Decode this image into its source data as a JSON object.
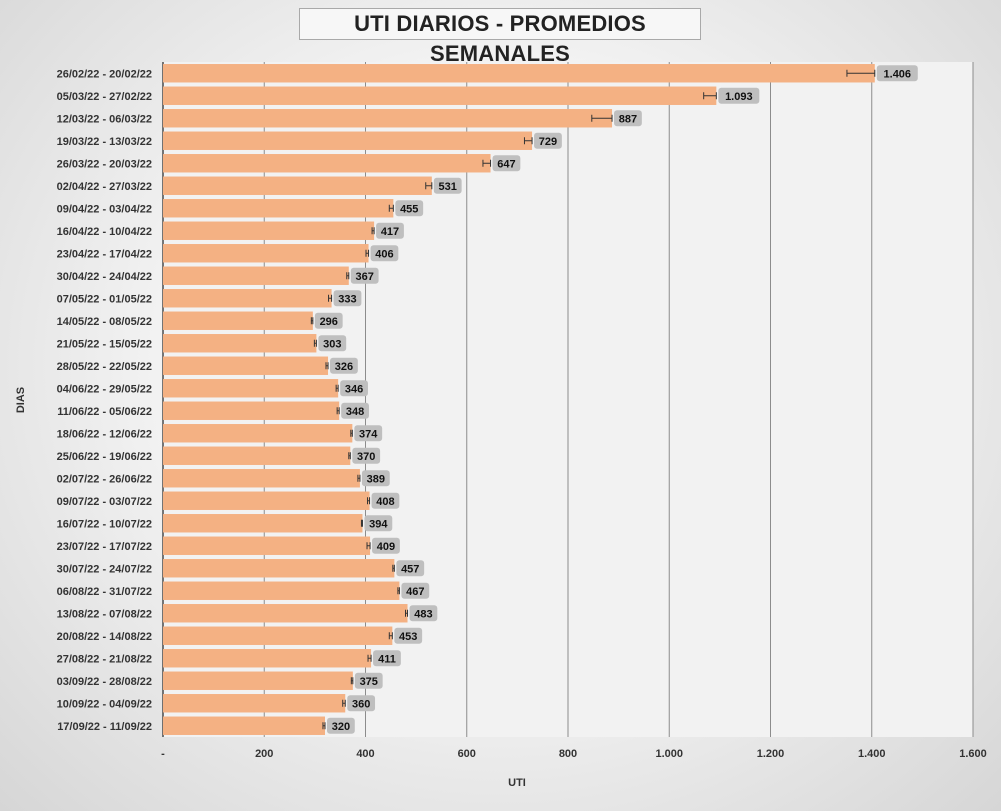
{
  "chart_data": {
    "type": "bar",
    "orientation": "horizontal",
    "title": "UTI DIARIOS - PROMEDIOS SEMANALES",
    "xlabel": "UTI",
    "ylabel": "DIAS",
    "xlim": [
      0,
      1600
    ],
    "x_ticks": [
      0,
      200,
      400,
      600,
      800,
      1000,
      1200,
      1400,
      1600
    ],
    "x_tick_labels": [
      "-",
      "200",
      "400",
      "600",
      "800",
      "1.000",
      "1.200",
      "1.400",
      "1.600"
    ],
    "grid": "vertical major gridlines",
    "bar_color": "#f4b183",
    "error_bars": true,
    "categories": [
      "26/02/22 - 20/02/22",
      "05/03/22 - 27/02/22",
      "12/03/22 - 06/03/22",
      "19/03/22 - 13/03/22",
      "26/03/22 - 20/03/22",
      "02/04/22 - 27/03/22",
      "09/04/22 - 03/04/22",
      "16/04/22 - 10/04/22",
      "23/04/22 - 17/04/22",
      "30/04/22 - 24/04/22",
      "07/05/22 - 01/05/22",
      "14/05/22 - 08/05/22",
      "21/05/22 - 15/05/22",
      "28/05/22 - 22/05/22",
      "04/06/22 - 29/05/22",
      "11/06/22 - 05/06/22",
      "18/06/22 - 12/06/22",
      "25/06/22 - 19/06/22",
      "02/07/22 - 26/06/22",
      "09/07/22 - 03/07/22",
      "16/07/22 - 10/07/22",
      "23/07/22 - 17/07/22",
      "30/07/22 - 24/07/22",
      "06/08/22 - 31/07/22",
      "13/08/22 - 07/08/22",
      "20/08/22 - 14/08/22",
      "27/08/22 - 21/08/22",
      "03/09/22 - 28/08/22",
      "10/09/22 - 04/09/22",
      "17/09/22 - 11/09/22"
    ],
    "values": [
      1406,
      1093,
      887,
      729,
      647,
      531,
      455,
      417,
      406,
      367,
      333,
      296,
      303,
      326,
      346,
      348,
      374,
      370,
      389,
      408,
      394,
      409,
      457,
      467,
      483,
      453,
      411,
      375,
      360,
      320
    ],
    "value_labels": [
      "1.406",
      "1.093",
      "887",
      "729",
      "647",
      "531",
      "455",
      "417",
      "406",
      "367",
      "333",
      "296",
      "303",
      "326",
      "346",
      "348",
      "374",
      "370",
      "389",
      "408",
      "394",
      "409",
      "457",
      "467",
      "483",
      "453",
      "411",
      "375",
      "360",
      "320"
    ],
    "error_low": [
      55,
      25,
      40,
      15,
      15,
      12,
      8,
      4,
      5,
      4,
      6,
      3,
      4,
      4,
      4,
      4,
      3,
      3,
      4,
      4,
      2,
      6,
      3,
      3,
      4,
      6,
      6,
      3,
      5,
      4
    ],
    "error_high": [
      0,
      0,
      0,
      0,
      0,
      0,
      0,
      0,
      0,
      0,
      0,
      0,
      0,
      0,
      0,
      0,
      0,
      0,
      0,
      0,
      0,
      0,
      0,
      0,
      0,
      0,
      0,
      0,
      0,
      0
    ]
  }
}
